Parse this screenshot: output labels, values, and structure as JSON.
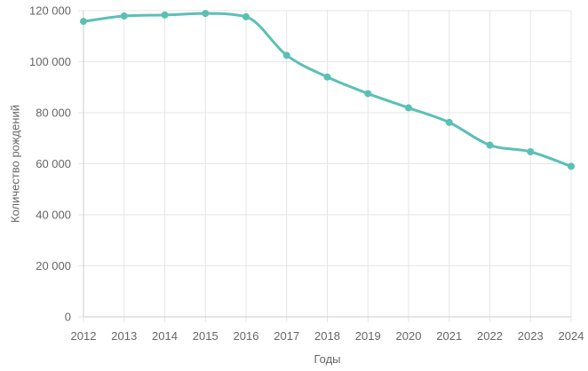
{
  "chart_data": {
    "type": "line",
    "xlabel": "Годы",
    "ylabel": "Количество рождений",
    "categories": [
      "2012",
      "2013",
      "2014",
      "2015",
      "2016",
      "2017",
      "2018",
      "2019",
      "2020",
      "2021",
      "2022",
      "2023",
      "2024"
    ],
    "series": [
      {
        "values": [
          115800,
          117900,
          118300,
          118900,
          117600,
          102500,
          94000,
          87500,
          81900,
          76200,
          67300,
          64700,
          59000
        ],
        "color": "#5bc0b4"
      }
    ],
    "ylim": [
      0,
      120000
    ],
    "yticks": [
      0,
      20000,
      40000,
      60000,
      80000,
      100000,
      120000
    ],
    "ytick_labels": [
      "0",
      "20 000",
      "40 000",
      "60 000",
      "80 000",
      "100 000",
      "120 000"
    ],
    "grid": true,
    "legend": "none"
  }
}
